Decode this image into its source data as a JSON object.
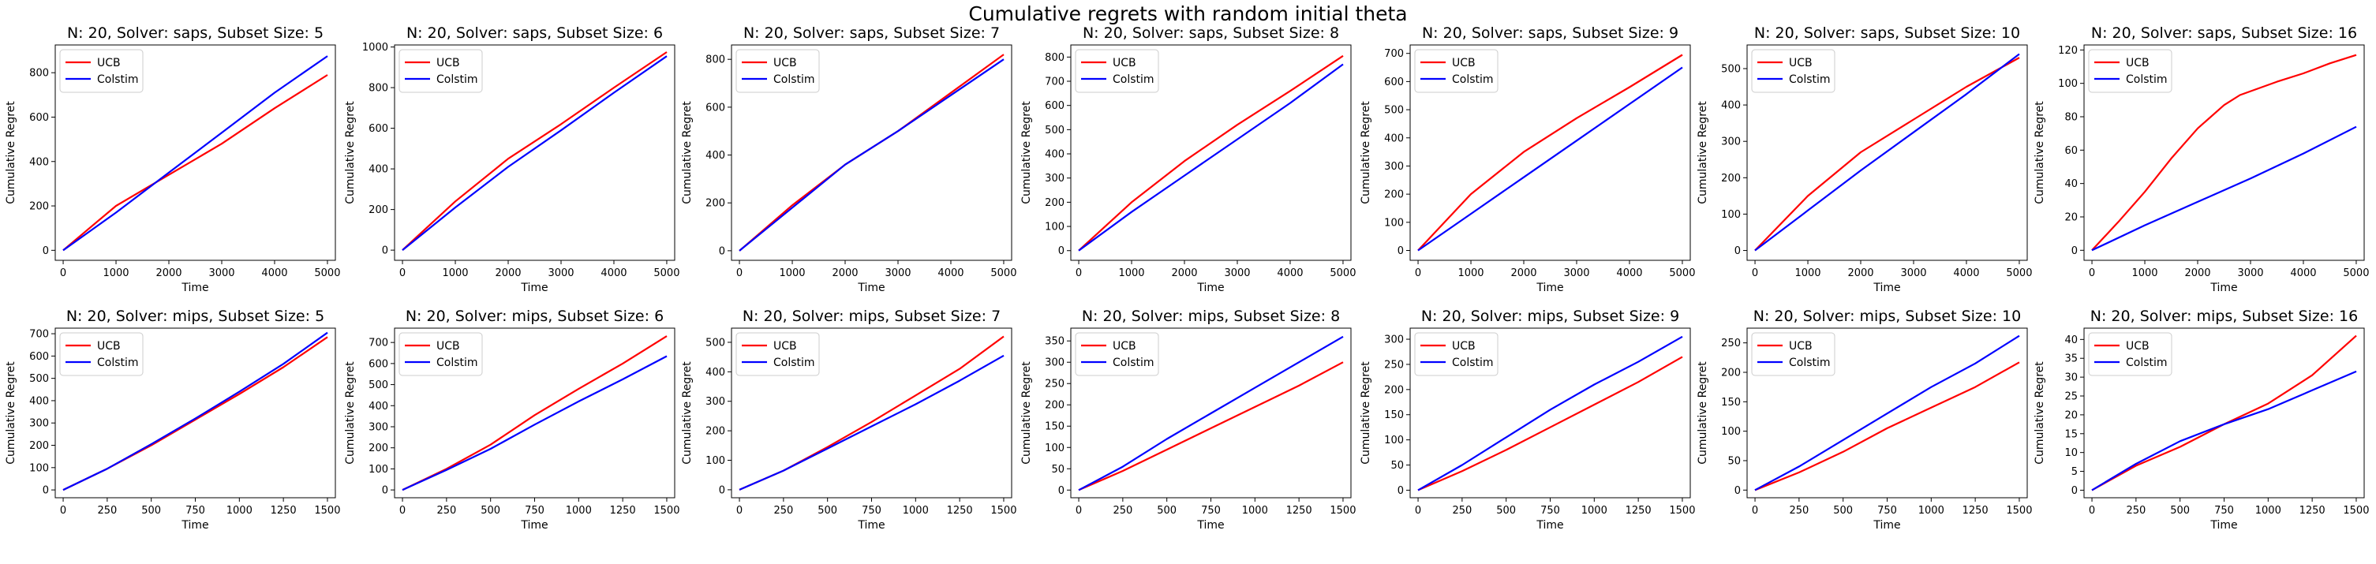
{
  "figure": {
    "suptitle": "Cumulative regrets with random initial theta",
    "xlabel": "Time",
    "ylabel": "Cumulative Regret",
    "legend": [
      "UCB",
      "Colstim"
    ],
    "colors": {
      "UCB": "#ff0000",
      "Colstim": "#0000ff"
    }
  },
  "chart_data": [
    {
      "type": "line",
      "title": "N: 20, Solver: saps, Subset Size: 5",
      "xlabel": "Time",
      "ylabel": "Cumulative Regret",
      "legend_position": "upper-left",
      "grid": false,
      "xlim": [
        -150,
        5150
      ],
      "ylim": [
        -45,
        925
      ],
      "xticks": [
        0,
        1000,
        2000,
        3000,
        4000,
        5000
      ],
      "yticks": [
        0,
        200,
        400,
        600,
        800
      ],
      "series": [
        {
          "name": "UCB",
          "x": [
            0,
            1000,
            2000,
            3000,
            4000,
            5000
          ],
          "y": [
            0,
            200,
            340,
            480,
            640,
            790
          ]
        },
        {
          "name": "Colstim",
          "x": [
            0,
            1000,
            2000,
            3000,
            4000,
            5000
          ],
          "y": [
            0,
            170,
            350,
            530,
            710,
            875
          ]
        }
      ]
    },
    {
      "type": "line",
      "title": "N: 20, Solver: saps, Subset Size: 6",
      "xlabel": "Time",
      "ylabel": "Cumulative Regret",
      "legend_position": "upper-left",
      "grid": false,
      "xlim": [
        -150,
        5150
      ],
      "ylim": [
        -50,
        1010
      ],
      "xticks": [
        0,
        1000,
        2000,
        3000,
        4000,
        5000
      ],
      "yticks": [
        0,
        200,
        400,
        600,
        800,
        1000
      ],
      "series": [
        {
          "name": "UCB",
          "x": [
            0,
            1000,
            2000,
            3000,
            4000,
            5000
          ],
          "y": [
            0,
            240,
            450,
            620,
            800,
            975
          ]
        },
        {
          "name": "Colstim",
          "x": [
            0,
            1000,
            2000,
            3000,
            4000,
            5000
          ],
          "y": [
            0,
            210,
            410,
            590,
            775,
            955
          ]
        }
      ]
    },
    {
      "type": "line",
      "title": "N: 20, Solver: saps, Subset Size: 7",
      "xlabel": "Time",
      "ylabel": "Cumulative Regret",
      "legend_position": "upper-left",
      "grid": false,
      "xlim": [
        -150,
        5150
      ],
      "ylim": [
        -40,
        860
      ],
      "xticks": [
        0,
        1000,
        2000,
        3000,
        4000,
        5000
      ],
      "yticks": [
        0,
        200,
        400,
        600,
        800
      ],
      "series": [
        {
          "name": "UCB",
          "x": [
            0,
            1000,
            2000,
            3000,
            4000,
            5000
          ],
          "y": [
            0,
            190,
            360,
            500,
            660,
            820
          ]
        },
        {
          "name": "Colstim",
          "x": [
            0,
            1000,
            2000,
            3000,
            4000,
            5000
          ],
          "y": [
            0,
            180,
            360,
            500,
            650,
            800
          ]
        }
      ]
    },
    {
      "type": "line",
      "title": "N: 20, Solver: saps, Subset Size: 8",
      "xlabel": "Time",
      "ylabel": "Cumulative Regret",
      "legend_position": "upper-left",
      "grid": false,
      "xlim": [
        -150,
        5150
      ],
      "ylim": [
        -40,
        850
      ],
      "xticks": [
        0,
        1000,
        2000,
        3000,
        4000,
        5000
      ],
      "yticks": [
        0,
        100,
        200,
        300,
        400,
        500,
        600,
        700,
        800
      ],
      "series": [
        {
          "name": "UCB",
          "x": [
            0,
            1000,
            2000,
            3000,
            4000,
            5000
          ],
          "y": [
            0,
            200,
            370,
            520,
            660,
            805
          ]
        },
        {
          "name": "Colstim",
          "x": [
            0,
            1000,
            2000,
            3000,
            4000,
            5000
          ],
          "y": [
            0,
            160,
            310,
            460,
            610,
            770
          ]
        }
      ]
    },
    {
      "type": "line",
      "title": "N: 20, Solver: saps, Subset Size: 9",
      "xlabel": "Time",
      "ylabel": "Cumulative Regret",
      "legend_position": "upper-left",
      "grid": false,
      "xlim": [
        -150,
        5150
      ],
      "ylim": [
        -35,
        730
      ],
      "xticks": [
        0,
        1000,
        2000,
        3000,
        4000,
        5000
      ],
      "yticks": [
        0,
        100,
        200,
        300,
        400,
        500,
        600,
        700
      ],
      "series": [
        {
          "name": "UCB",
          "x": [
            0,
            1000,
            2000,
            3000,
            4000,
            5000
          ],
          "y": [
            0,
            200,
            350,
            470,
            580,
            695
          ]
        },
        {
          "name": "Colstim",
          "x": [
            0,
            1000,
            2000,
            3000,
            4000,
            5000
          ],
          "y": [
            0,
            130,
            260,
            390,
            520,
            650
          ]
        }
      ]
    },
    {
      "type": "line",
      "title": "N: 20, Solver: saps, Subset Size: 10",
      "xlabel": "Time",
      "ylabel": "Cumulative Regret",
      "legend_position": "upper-left",
      "grid": false,
      "xlim": [
        -150,
        5150
      ],
      "ylim": [
        -27,
        565
      ],
      "xticks": [
        0,
        1000,
        2000,
        3000,
        4000,
        5000
      ],
      "yticks": [
        0,
        100,
        200,
        300,
        400,
        500
      ],
      "series": [
        {
          "name": "UCB",
          "x": [
            0,
            1000,
            2000,
            3000,
            4000,
            5000
          ],
          "y": [
            0,
            150,
            270,
            360,
            450,
            530
          ]
        },
        {
          "name": "Colstim",
          "x": [
            0,
            1000,
            2000,
            3000,
            4000,
            5000
          ],
          "y": [
            0,
            110,
            220,
            325,
            430,
            540
          ]
        }
      ]
    },
    {
      "type": "line",
      "title": "N: 20, Solver: saps, Subset Size: 16",
      "xlabel": "Time",
      "ylabel": "Cumulative Regret",
      "legend_position": "upper-left",
      "grid": false,
      "xlim": [
        -150,
        5150
      ],
      "ylim": [
        -6,
        123
      ],
      "xticks": [
        0,
        1000,
        2000,
        3000,
        4000,
        5000
      ],
      "yticks": [
        0,
        20,
        40,
        60,
        80,
        100,
        120
      ],
      "series": [
        {
          "name": "UCB",
          "x": [
            0,
            500,
            1000,
            1500,
            2000,
            2500,
            2800,
            3500,
            4000,
            4500,
            5000
          ],
          "y": [
            0,
            17,
            35,
            55,
            73,
            87,
            93,
            101,
            106,
            112,
            117
          ]
        },
        {
          "name": "Colstim",
          "x": [
            0,
            1000,
            2000,
            3000,
            4000,
            5000
          ],
          "y": [
            0,
            15,
            29,
            43,
            58,
            74
          ]
        }
      ]
    },
    {
      "type": "line",
      "title": "N: 20, Solver: mips, Subset Size: 5",
      "xlabel": "Time",
      "ylabel": "Cumulative Regret",
      "legend_position": "upper-left",
      "grid": false,
      "xlim": [
        -45,
        1545
      ],
      "ylim": [
        -35,
        725
      ],
      "xticks": [
        0,
        250,
        500,
        750,
        1000,
        1250,
        1500
      ],
      "yticks": [
        0,
        100,
        200,
        300,
        400,
        500,
        600,
        700
      ],
      "series": [
        {
          "name": "UCB",
          "x": [
            0,
            250,
            500,
            750,
            1000,
            1250,
            1500
          ],
          "y": [
            0,
            95,
            200,
            315,
            430,
            550,
            685
          ]
        },
        {
          "name": "Colstim",
          "x": [
            0,
            250,
            500,
            750,
            1000,
            1250,
            1500
          ],
          "y": [
            0,
            95,
            205,
            320,
            440,
            565,
            705
          ]
        }
      ]
    },
    {
      "type": "line",
      "title": "N: 20, Solver: mips, Subset Size: 6",
      "xlabel": "Time",
      "ylabel": "Cumulative Regret",
      "legend_position": "upper-left",
      "grid": false,
      "xlim": [
        -45,
        1545
      ],
      "ylim": [
        -37,
        768
      ],
      "xticks": [
        0,
        250,
        500,
        750,
        1000,
        1250,
        1500
      ],
      "yticks": [
        0,
        100,
        200,
        300,
        400,
        500,
        600,
        700
      ],
      "series": [
        {
          "name": "UCB",
          "x": [
            0,
            250,
            500,
            750,
            1000,
            1250,
            1500
          ],
          "y": [
            0,
            100,
            215,
            355,
            480,
            600,
            730
          ]
        },
        {
          "name": "Colstim",
          "x": [
            0,
            250,
            500,
            750,
            1000,
            1250,
            1500
          ],
          "y": [
            0,
            95,
            195,
            310,
            420,
            525,
            635
          ]
        }
      ]
    },
    {
      "type": "line",
      "title": "N: 20, Solver: mips, Subset Size: 7",
      "xlabel": "Time",
      "ylabel": "Cumulative Regret",
      "legend_position": "upper-left",
      "grid": false,
      "xlim": [
        -45,
        1545
      ],
      "ylim": [
        -27,
        548
      ],
      "xticks": [
        0,
        250,
        500,
        750,
        1000,
        1250,
        1500
      ],
      "yticks": [
        0,
        100,
        200,
        300,
        400,
        500
      ],
      "series": [
        {
          "name": "UCB",
          "x": [
            0,
            250,
            500,
            750,
            1000,
            1250,
            1500
          ],
          "y": [
            0,
            65,
            145,
            230,
            320,
            410,
            520
          ]
        },
        {
          "name": "Colstim",
          "x": [
            0,
            250,
            500,
            750,
            1000,
            1250,
            1500
          ],
          "y": [
            0,
            65,
            140,
            215,
            290,
            370,
            455
          ]
        }
      ]
    },
    {
      "type": "line",
      "title": "N: 20, Solver: mips, Subset Size: 8",
      "xlabel": "Time",
      "ylabel": "Cumulative Regret",
      "legend_position": "upper-left",
      "grid": false,
      "xlim": [
        -45,
        1545
      ],
      "ylim": [
        -18,
        380
      ],
      "xticks": [
        0,
        250,
        500,
        750,
        1000,
        1250,
        1500
      ],
      "yticks": [
        0,
        50,
        100,
        150,
        200,
        250,
        300,
        350
      ],
      "series": [
        {
          "name": "UCB",
          "x": [
            0,
            250,
            500,
            750,
            1000,
            1250,
            1500
          ],
          "y": [
            0,
            45,
            95,
            145,
            195,
            245,
            300
          ]
        },
        {
          "name": "Colstim",
          "x": [
            0,
            250,
            500,
            750,
            1000,
            1250,
            1500
          ],
          "y": [
            0,
            55,
            120,
            180,
            240,
            300,
            360
          ]
        }
      ]
    },
    {
      "type": "line",
      "title": "N: 20, Solver: mips, Subset Size: 9",
      "xlabel": "Time",
      "ylabel": "Cumulative Regret",
      "legend_position": "upper-left",
      "grid": false,
      "xlim": [
        -45,
        1545
      ],
      "ylim": [
        -15,
        322
      ],
      "xticks": [
        0,
        250,
        500,
        750,
        1000,
        1250,
        1500
      ],
      "yticks": [
        0,
        50,
        100,
        150,
        200,
        250,
        300
      ],
      "series": [
        {
          "name": "UCB",
          "x": [
            0,
            250,
            500,
            750,
            1000,
            1250,
            1500
          ],
          "y": [
            0,
            38,
            80,
            125,
            170,
            215,
            265
          ]
        },
        {
          "name": "Colstim",
          "x": [
            0,
            250,
            500,
            750,
            1000,
            1250,
            1500
          ],
          "y": [
            0,
            50,
            105,
            160,
            210,
            255,
            305
          ]
        }
      ]
    },
    {
      "type": "line",
      "title": "N: 20, Solver: mips, Subset Size: 10",
      "xlabel": "Time",
      "ylabel": "Cumulative Regret",
      "legend_position": "upper-left",
      "grid": false,
      "xlim": [
        -45,
        1545
      ],
      "ylim": [
        -13,
        275
      ],
      "xticks": [
        0,
        250,
        500,
        750,
        1000,
        1250,
        1500
      ],
      "yticks": [
        0,
        50,
        100,
        150,
        200,
        250
      ],
      "series": [
        {
          "name": "UCB",
          "x": [
            0,
            250,
            500,
            750,
            1000,
            1250,
            1500
          ],
          "y": [
            0,
            30,
            65,
            105,
            140,
            175,
            217
          ]
        },
        {
          "name": "Colstim",
          "x": [
            0,
            250,
            500,
            750,
            1000,
            1250,
            1500
          ],
          "y": [
            0,
            40,
            85,
            130,
            175,
            215,
            262
          ]
        }
      ]
    },
    {
      "type": "line",
      "title": "N: 20, Solver: mips, Subset Size: 16",
      "xlabel": "Time",
      "ylabel": "Cumulative Regret",
      "legend_position": "upper-left",
      "grid": false,
      "xlim": [
        -45,
        1545
      ],
      "ylim": [
        -2,
        43
      ],
      "xticks": [
        0,
        250,
        500,
        750,
        1000,
        1250,
        1500
      ],
      "yticks": [
        0,
        5,
        10,
        15,
        20,
        25,
        30,
        35,
        40
      ],
      "series": [
        {
          "name": "UCB",
          "x": [
            0,
            250,
            500,
            750,
            1000,
            1250,
            1500
          ],
          "y": [
            0,
            6.5,
            11.5,
            17.5,
            23,
            30.5,
            41
          ]
        },
        {
          "name": "Colstim",
          "x": [
            0,
            250,
            500,
            750,
            1000,
            1250,
            1500
          ],
          "y": [
            0,
            7,
            13,
            17.5,
            21.5,
            26.5,
            31.5
          ]
        }
      ]
    }
  ]
}
